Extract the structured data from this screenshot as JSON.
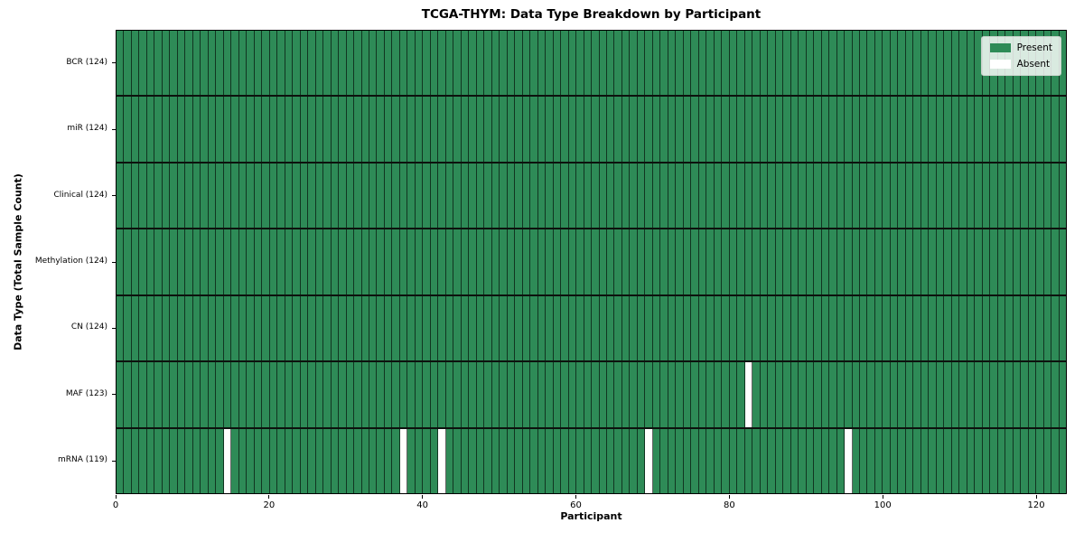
{
  "title": "TCGA-THYM: Data Type Breakdown by Participant",
  "axes": {
    "x_label": "Participant",
    "y_label": "Data Type (Total Sample Count)"
  },
  "legend": {
    "items": [
      {
        "label": "Present",
        "color": "#2e8b57"
      },
      {
        "label": "Absent",
        "color": "#ffffff"
      }
    ]
  },
  "chart_data": {
    "type": "heatmap",
    "title": "TCGA-THYM: Data Type Breakdown by Participant",
    "xlabel": "Participant",
    "ylabel": "Data Type (Total Sample Count)",
    "xlim": [
      0,
      124
    ],
    "x_ticks": [
      0,
      20,
      40,
      60,
      80,
      100,
      120
    ],
    "n_participants": 124,
    "legend_position": "upper right",
    "grid": true,
    "rows": [
      {
        "label": "BCR (124)",
        "data_type": "BCR",
        "present_count": 124,
        "absent_participants": []
      },
      {
        "label": "miR (124)",
        "data_type": "miR",
        "present_count": 124,
        "absent_participants": []
      },
      {
        "label": "Clinical (124)",
        "data_type": "Clinical",
        "present_count": 124,
        "absent_participants": []
      },
      {
        "label": "Methylation (124)",
        "data_type": "Methylation",
        "present_count": 124,
        "absent_participants": []
      },
      {
        "label": "CN (124)",
        "data_type": "CN",
        "present_count": 124,
        "absent_participants": []
      },
      {
        "label": "MAF (123)",
        "data_type": "MAF",
        "present_count": 123,
        "absent_participants": [
          82
        ]
      },
      {
        "label": "mRNA (119)",
        "data_type": "mRNA",
        "present_count": 119,
        "absent_participants": [
          14,
          37,
          42,
          69,
          95
        ]
      }
    ],
    "colors": {
      "present": "#2e8b57",
      "absent": "#ffffff",
      "cell_border": "#1a1a1a"
    }
  }
}
